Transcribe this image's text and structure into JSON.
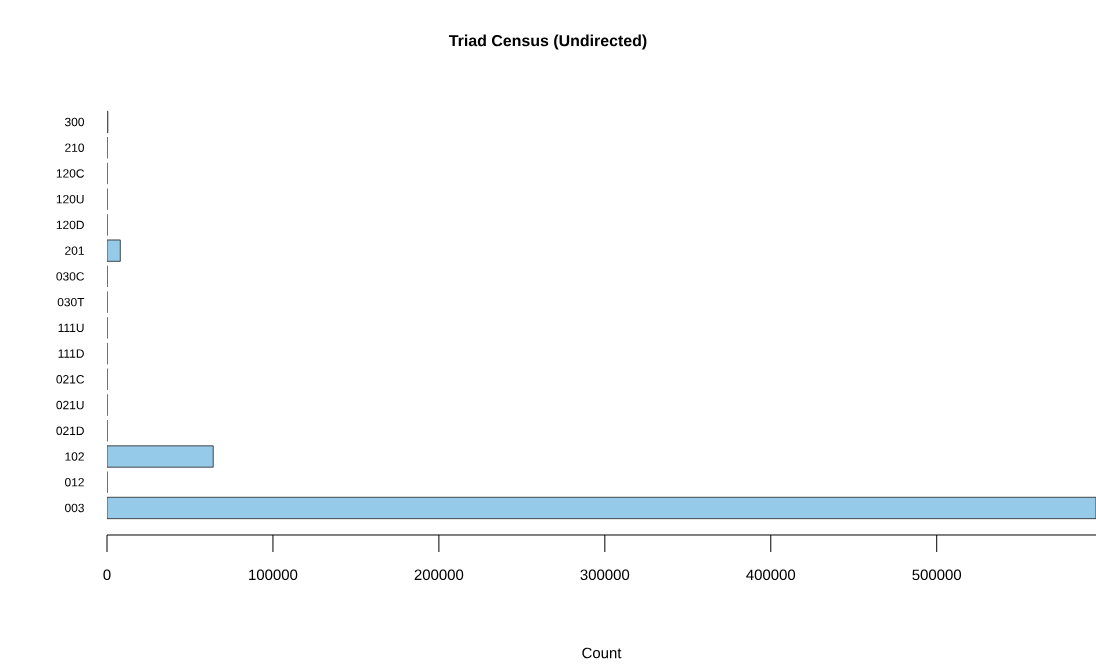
{
  "chart_data": {
    "type": "bar",
    "orientation": "horizontal",
    "title": "Triad Census (Undirected)",
    "xlabel": "Count",
    "categories": [
      "300",
      "210",
      "120C",
      "120U",
      "120D",
      "201",
      "030C",
      "030T",
      "111U",
      "111D",
      "021C",
      "021U",
      "021D",
      "102",
      "012",
      "003"
    ],
    "values": [
      500,
      0,
      0,
      0,
      0,
      8000,
      0,
      0,
      0,
      0,
      0,
      0,
      0,
      64000,
      0,
      596000
    ],
    "color": "#95cbe8",
    "xlim": [
      0,
      596000
    ],
    "xticks": [
      0,
      100000,
      200000,
      300000,
      400000,
      500000
    ],
    "grid": false
  }
}
